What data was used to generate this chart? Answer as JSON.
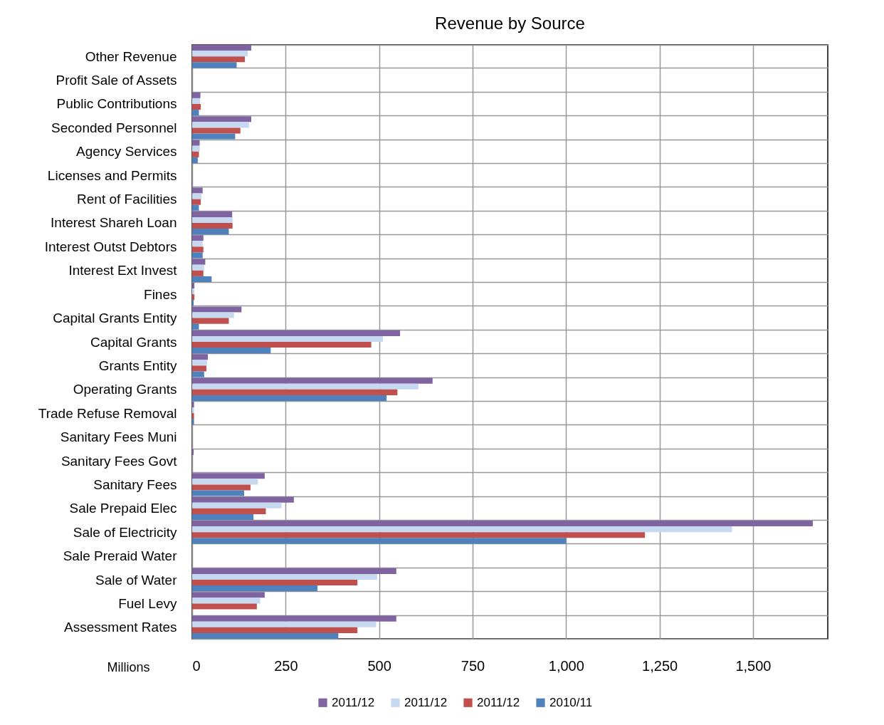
{
  "chart_data": {
    "type": "bar",
    "orientation": "horizontal",
    "title": "Revenue by Source",
    "xlabel": "Millions",
    "categories": [
      "Other Revenue",
      "Profit Sale of Assets",
      "Public Contributions",
      "Seconded Personnel",
      "Agency Services",
      "Licenses and Permits",
      "Rent of Facilities",
      "Interest Shareh Loan",
      "Interest Outst Debtors",
      "Interest Ext Invest",
      "Fines",
      "Capital Grants Entity",
      "Capital Grants",
      "Grants Entity",
      "Operating Grants",
      "Trade Refuse Removal",
      "Sanitary Fees Muni",
      "Sanitary Fees Govt",
      "Sanitary Fees",
      "Sale Prepaid Elec",
      "Sale of Electricity",
      "Sale Preraid Water",
      "Sale of Water",
      "Fuel Levy",
      "Assessment Rates"
    ],
    "series": [
      {
        "name": "2011/12",
        "color": "#8064a2",
        "values": [
          158,
          0,
          22,
          158,
          20,
          0,
          28,
          107,
          30,
          35,
          6,
          132,
          556,
          42,
          643,
          5,
          0,
          4,
          194,
          272,
          1660,
          0,
          546,
          194,
          546
        ]
      },
      {
        "name": "2011/12",
        "color": "#c6d9f1",
        "values": [
          149,
          0,
          21,
          152,
          20,
          0,
          25,
          108,
          28,
          32,
          6,
          112,
          510,
          40,
          605,
          5,
          0,
          0,
          176,
          239,
          1444,
          0,
          495,
          182,
          492
        ]
      },
      {
        "name": "2011/12",
        "color": "#c0504d",
        "values": [
          141,
          0,
          23,
          129,
          18,
          0,
          23,
          108,
          30,
          30,
          6,
          98,
          479,
          38,
          549,
          5,
          0,
          0,
          156,
          197,
          1211,
          0,
          442,
          173,
          442
        ]
      },
      {
        "name": "2010/11",
        "color": "#4f81bd",
        "values": [
          119,
          0,
          18,
          115,
          15,
          0,
          18,
          98,
          28,
          52,
          4,
          18,
          210,
          32,
          520,
          5,
          0,
          0,
          139,
          164,
          1000,
          0,
          335,
          0,
          391
        ]
      }
    ],
    "xlim": [
      0,
      1700
    ],
    "xticks": [
      0,
      250,
      500,
      750,
      {
        "value": 1000,
        "label": "1,000"
      },
      {
        "value": 1250,
        "label": "1,250"
      },
      {
        "value": 1500,
        "label": "1,500"
      }
    ],
    "grid": true,
    "legend": "bottom"
  }
}
